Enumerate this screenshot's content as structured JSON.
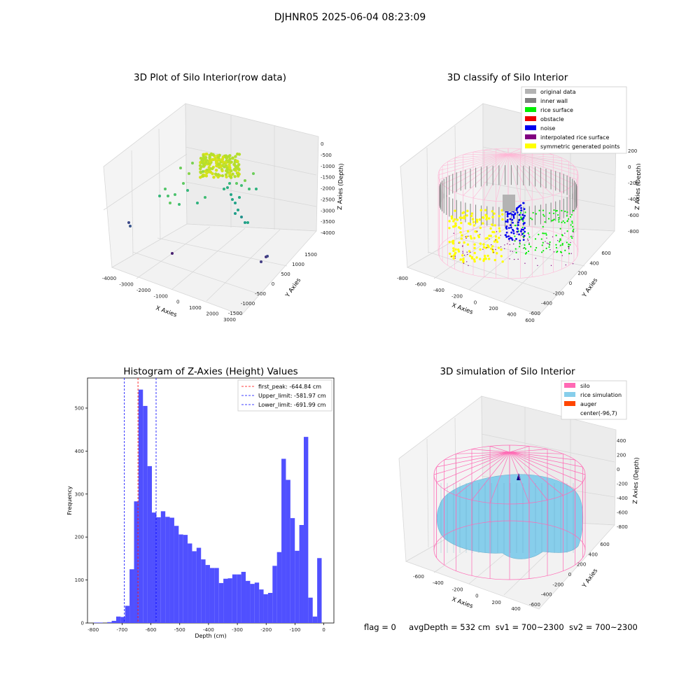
{
  "suptitle": "DJHNR05 2025-06-04 08:23:09",
  "panel1": {
    "title": "3D Plot of Silo Interior(row data)",
    "xlabel": "X Axies",
    "ylabel": "Y Axies",
    "zlabel": "Z Axies (Depth)",
    "xticks": [
      "-4000",
      "-3000",
      "-2000",
      "-1000",
      "0",
      "1000",
      "2000",
      "3000"
    ],
    "yticks": [
      "1500",
      "1000",
      "500",
      "0",
      "-500",
      "-1000",
      "-1500"
    ],
    "zticks": [
      "0",
      "-500",
      "-1000",
      "-1500",
      "-2000",
      "-2500",
      "-3000",
      "-3500",
      "-4000"
    ]
  },
  "panel2": {
    "title": "3D classify of Silo Interior",
    "xlabel": "X Axies",
    "ylabel": "Y Axies",
    "zlabel": "Z Axies (Depth)",
    "xticks": [
      "-800",
      "-600",
      "-400",
      "-200",
      "0",
      "200",
      "400",
      "600"
    ],
    "yticks": [
      "600",
      "400",
      "200",
      "0",
      "-200",
      "-400",
      "-600"
    ],
    "zticks": [
      "200",
      "0",
      "-200",
      "-400",
      "-600",
      "-800"
    ],
    "legend": [
      {
        "label": "original data",
        "color": "#b3b3b3"
      },
      {
        "label": "inner wall",
        "color": "#808080"
      },
      {
        "label": "rice surface",
        "color": "#00ee00"
      },
      {
        "label": "obstacle",
        "color": "#ee0000"
      },
      {
        "label": "noise",
        "color": "#0000ee"
      },
      {
        "label": "interpolated rice surface",
        "color": "#800080"
      },
      {
        "label": "symmetric generated points",
        "color": "#ffff00"
      }
    ]
  },
  "panel4": {
    "title": "3D simulation of Silo Interior",
    "xlabel": "X Axies",
    "ylabel": "Y Axies",
    "zlabel": "Z Axies (Depth)",
    "xticks": [
      "-600",
      "-400",
      "-200",
      "0",
      "200",
      "400"
    ],
    "yticks": [
      "600",
      "400",
      "200",
      "0",
      "-200",
      "-400",
      "-600"
    ],
    "zticks": [
      "400",
      "200",
      "0",
      "-200",
      "-400",
      "-600",
      "-800"
    ],
    "legend": [
      {
        "label": "silo",
        "color": "#ff69b4"
      },
      {
        "label": "rice simulation",
        "color": "#87ceeb"
      },
      {
        "label": "auger",
        "color": "#ff4500"
      },
      {
        "label": "center(-96,7)",
        "color": ""
      }
    ]
  },
  "footer": {
    "flag": "flag = 0",
    "avg": "avgDepth = 532 cm",
    "sv1": "sv1 = 700~2300",
    "sv2": "sv2 = 700~2300"
  },
  "chart_data": {
    "type": "bar",
    "title": "Histogram of Z-Axies (Height) Values",
    "xlabel": "Depth (cm)",
    "ylabel": "Frequency",
    "xlim": [
      -820,
      35
    ],
    "ylim": [
      0,
      570
    ],
    "xticks": [
      -800,
      -700,
      -600,
      -500,
      -400,
      -300,
      -200,
      -100,
      0
    ],
    "yticks": [
      0,
      100,
      200,
      300,
      400,
      500
    ],
    "bin_start": -798,
    "bin_width": 15.5,
    "values": [
      1,
      1,
      0,
      2,
      5,
      15,
      14,
      40,
      125,
      283,
      543,
      505,
      365,
      257,
      246,
      260,
      247,
      245,
      226,
      206,
      205,
      185,
      167,
      175,
      148,
      135,
      128,
      128,
      93,
      103,
      104,
      113,
      113,
      119,
      98,
      91,
      94,
      78,
      67,
      70,
      133,
      165,
      382,
      333,
      244,
      168,
      228,
      433,
      59,
      15,
      151
    ],
    "bar_color": "#5050ff",
    "lines": [
      {
        "label": "first_peak: -644.84 cm",
        "x": -644.84,
        "color": "#ff0000",
        "style": "dashed"
      },
      {
        "label": "Upper_limit: -581.97 cm",
        "x": -581.97,
        "color": "#0000ff",
        "style": "dashed"
      },
      {
        "label": "Lower_limit: -691.99 cm",
        "x": -691.99,
        "color": "#0000ff",
        "style": "dashed"
      }
    ],
    "legend_position": "upper-right"
  }
}
